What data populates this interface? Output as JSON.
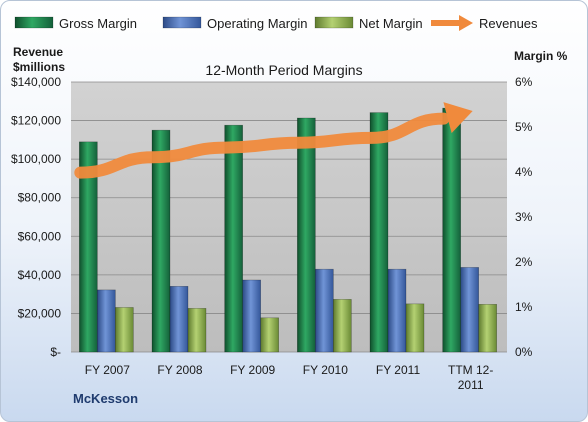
{
  "chart_data": {
    "type": "bar",
    "title": "12-Month Period Margins",
    "left_axis_title": [
      "Revenue",
      "$millions"
    ],
    "right_axis_title": "Margin %",
    "company": "McKesson",
    "categories": [
      [
        "FY 2007"
      ],
      [
        "FY 2008"
      ],
      [
        "FY 2009"
      ],
      [
        "FY 2010"
      ],
      [
        "FY 2011"
      ],
      [
        "TTM 12-",
        "2011"
      ]
    ],
    "left_ticks": [
      "$-",
      "$20,000",
      "$40,000",
      "$60,000",
      "$80,000",
      "$100,000",
      "$120,000",
      "$140,000"
    ],
    "right_ticks": [
      "0%",
      "1%",
      "2%",
      "3%",
      "4%",
      "5%",
      "6%"
    ],
    "ylim_left": [
      0,
      140000
    ],
    "ylim_right": [
      0,
      6
    ],
    "series": [
      {
        "name": "Gross Margin",
        "axis": "right",
        "color": "#1f7a4a",
        "values": [
          4.67,
          4.93,
          5.04,
          5.2,
          5.32,
          5.42
        ]
      },
      {
        "name": "Operating Margin",
        "axis": "right",
        "color": "#4a6fb5",
        "values": [
          1.38,
          1.46,
          1.6,
          1.84,
          1.84,
          1.88
        ]
      },
      {
        "name": "Net Margin",
        "axis": "right",
        "color": "#8fb04e",
        "values": [
          0.99,
          0.97,
          0.76,
          1.17,
          1.07,
          1.06
        ]
      },
      {
        "name": "Revenues",
        "axis": "left",
        "color": "#f08a3c",
        "type": "line",
        "values": [
          93000,
          101000,
          106000,
          108500,
          111000,
          121000
        ]
      }
    ],
    "grid": true,
    "legend_position": "top"
  }
}
